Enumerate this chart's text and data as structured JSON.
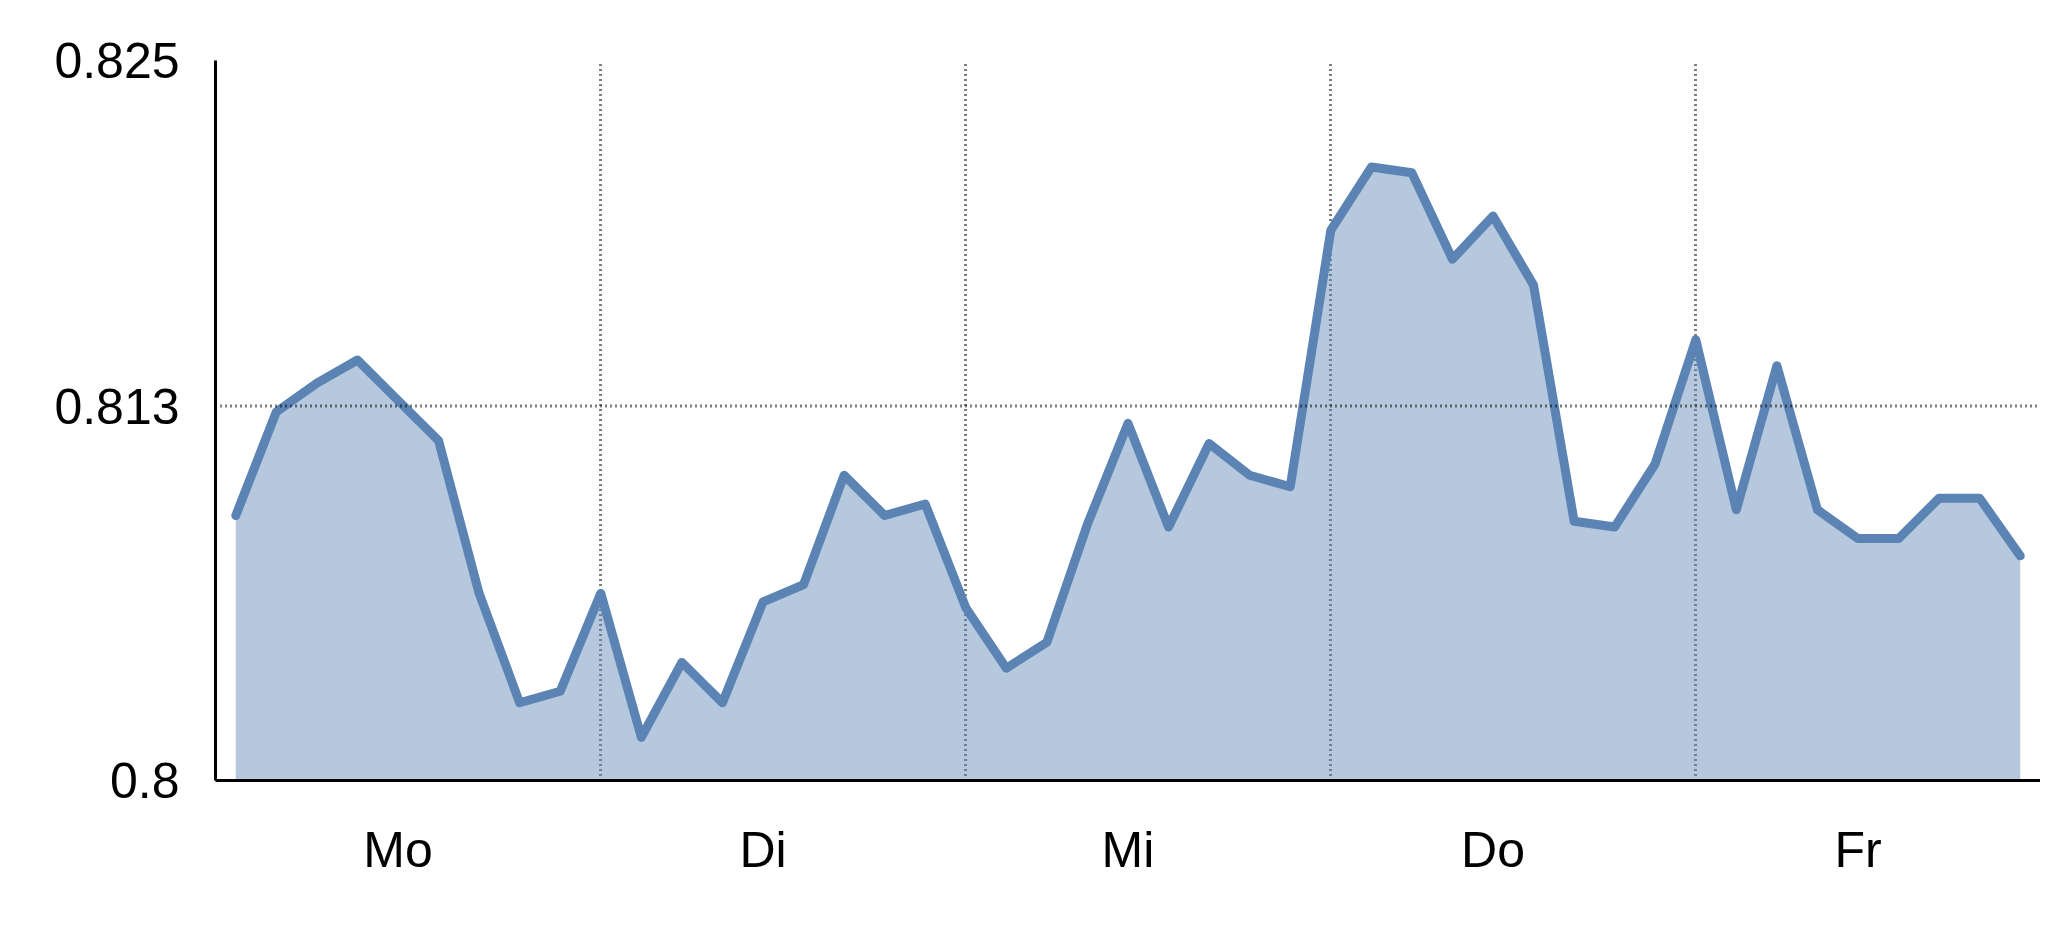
{
  "chart_data": {
    "type": "area",
    "categories": [
      null,
      null,
      null,
      null,
      "Mo",
      null,
      null,
      null,
      null,
      null,
      null,
      null,
      null,
      "Di",
      null,
      null,
      null,
      null,
      null,
      null,
      null,
      null,
      "Mi",
      null,
      null,
      null,
      null,
      null,
      null,
      null,
      null,
      "Do",
      null,
      null,
      null,
      null,
      null,
      null,
      null,
      null,
      "Fr",
      null,
      null,
      null,
      null
    ],
    "series": [
      {
        "color": "#5b84b4",
        "values": [
          0.8092,
          0.8128,
          0.8138,
          0.8146,
          0.8132,
          0.8118,
          0.8065,
          0.8027,
          0.8031,
          0.8065,
          0.8015,
          0.8041,
          0.8027,
          0.8062,
          0.8068,
          0.8106,
          0.8092,
          0.8096,
          0.806,
          0.8039,
          0.8048,
          0.8089,
          0.8124,
          0.8088,
          0.8117,
          0.8106,
          0.8102,
          0.8191,
          0.8213,
          0.8211,
          0.8181,
          0.8196,
          0.8172,
          0.809,
          0.8088,
          0.811,
          0.8153,
          0.8094,
          0.8144,
          0.8094,
          0.8084,
          0.8084,
          0.8098,
          0.8098,
          0.8078
        ]
      }
    ],
    "ylim": [
      0.8,
      0.825
    ],
    "yticks": [
      0.8,
      0.813,
      0.825
    ],
    "ref_lines": [
      {
        "axis": "y",
        "value": 0.813,
        "line_style": "dotted",
        "color": "#000000"
      }
    ],
    "grid": "x",
    "marker": "none",
    "line_style": "solid"
  }
}
